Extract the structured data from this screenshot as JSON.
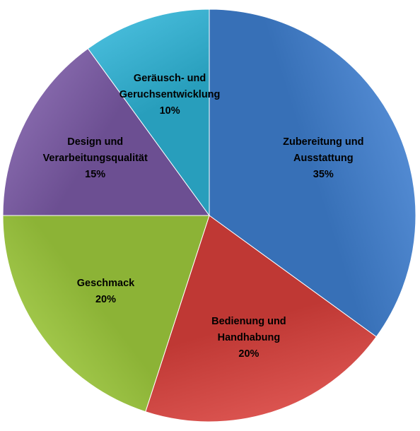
{
  "chart_data": {
    "type": "pie",
    "title": "",
    "start_angle_deg": 0,
    "direction": "clockwise",
    "slices": [
      {
        "label_lines": [
          "Zubereitung und",
          "Ausstattung"
        ],
        "percent_label": "35%",
        "value": 35,
        "color": "#3f7fd0"
      },
      {
        "label_lines": [
          "Bedienung und",
          "Handhabung"
        ],
        "percent_label": "20%",
        "value": 20,
        "color": "#d9403b"
      },
      {
        "label_lines": [
          "Geschmack"
        ],
        "percent_label": "20%",
        "value": 20,
        "color": "#9fcb3d"
      },
      {
        "label_lines": [
          "Design und",
          "Verarbeitungsqualität"
        ],
        "percent_label": "15%",
        "value": 15,
        "color": "#7b5aa6"
      },
      {
        "label_lines": [
          "Geräusch- und",
          "Geruchsentwicklung"
        ],
        "percent_label": "10%",
        "value": 10,
        "color": "#2eb3d6"
      }
    ]
  }
}
